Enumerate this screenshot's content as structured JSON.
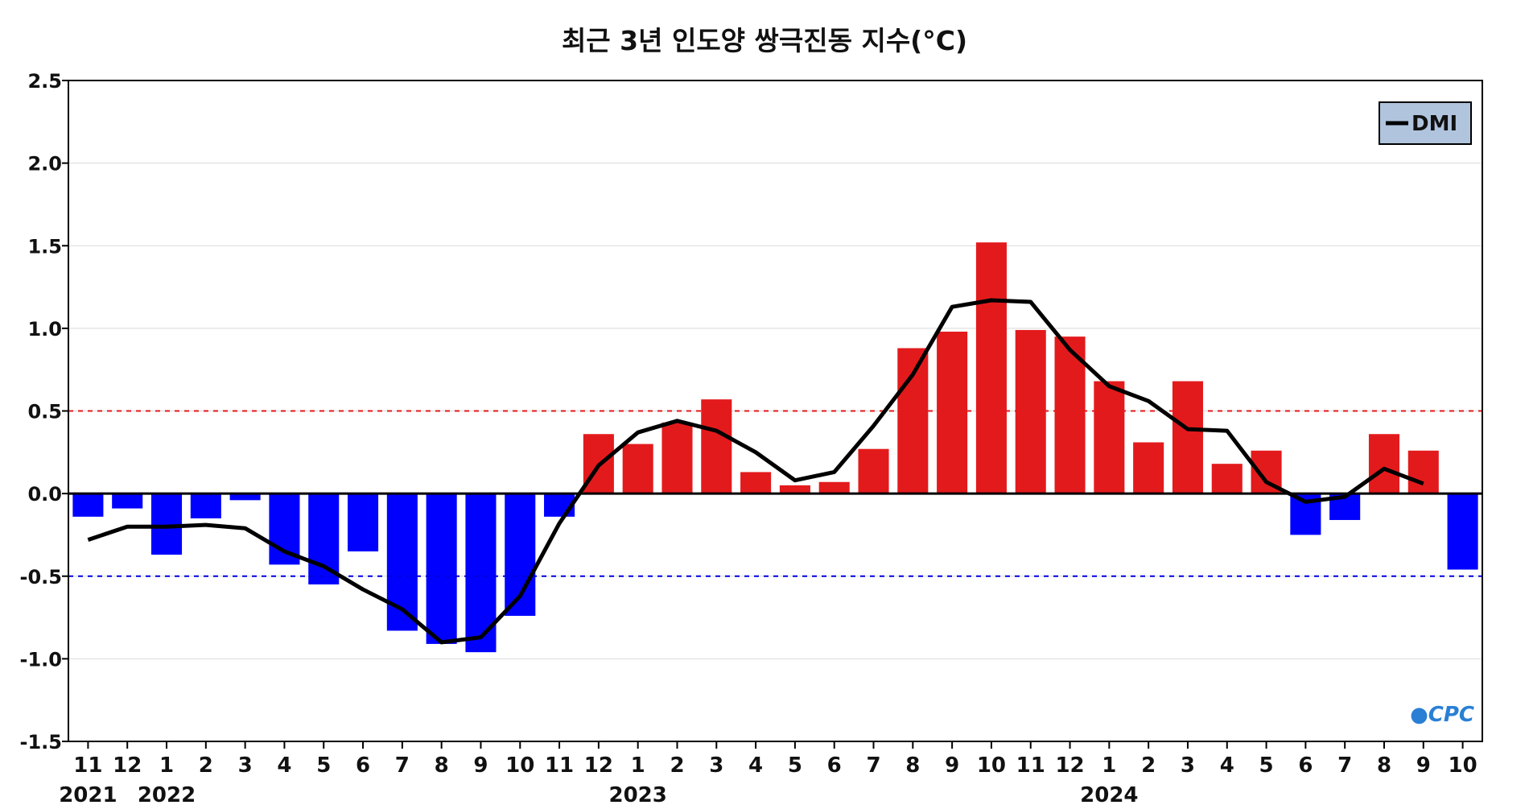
{
  "chart_data": {
    "type": "bar",
    "title": "최근 3년 인도양 쌍극진동 지수(°C)",
    "ylim": [
      -1.5,
      2.5
    ],
    "yticks": [
      "2.5",
      "2.0",
      "1.5",
      "1.0",
      "0.5",
      "0.0",
      "-0.5",
      "-1.0",
      "-1.5"
    ],
    "ytick_values": [
      2.5,
      2.0,
      1.5,
      1.0,
      0.5,
      0.0,
      -0.5,
      -1.0,
      -1.5
    ],
    "categories": [
      "11",
      "12",
      "1",
      "2",
      "3",
      "4",
      "5",
      "6",
      "7",
      "8",
      "9",
      "10",
      "11",
      "12",
      "1",
      "2",
      "3",
      "4",
      "5",
      "6",
      "7",
      "8",
      "9",
      "10",
      "11",
      "12",
      "1",
      "2",
      "3",
      "4",
      "5",
      "6",
      "7",
      "8",
      "9",
      "10"
    ],
    "year_labels": [
      {
        "index": 0,
        "text": "2021"
      },
      {
        "index": 2,
        "text": "2022"
      },
      {
        "index": 14,
        "text": "2023"
      },
      {
        "index": 26,
        "text": "2024"
      }
    ],
    "bar_values": [
      -0.14,
      -0.09,
      -0.37,
      -0.15,
      -0.04,
      -0.43,
      -0.55,
      -0.35,
      -0.83,
      -0.91,
      -0.96,
      -0.74,
      -0.14,
      0.36,
      0.3,
      0.43,
      0.57,
      0.13,
      0.05,
      0.07,
      0.27,
      0.88,
      0.98,
      1.52,
      0.99,
      0.95,
      0.68,
      0.31,
      0.68,
      0.18,
      0.26,
      -0.25,
      -0.16,
      0.36,
      0.26,
      -0.46
    ],
    "series": [
      {
        "name": "DMI",
        "type": "line",
        "values": [
          -0.28,
          -0.2,
          -0.2,
          -0.19,
          -0.21,
          -0.35,
          -0.44,
          -0.58,
          -0.7,
          -0.9,
          -0.87,
          -0.62,
          -0.18,
          0.17,
          0.37,
          0.44,
          0.38,
          0.25,
          0.08,
          0.13,
          0.41,
          0.72,
          1.13,
          1.17,
          1.16,
          0.87,
          0.65,
          0.56,
          0.39,
          0.38,
          0.07,
          -0.05,
          -0.02,
          0.15,
          0.06,
          null
        ]
      }
    ],
    "reference_lines": [
      0.5,
      -0.5,
      0.0
    ],
    "grid": true,
    "legend_placement": "top-right",
    "colors": {
      "positive_bar": "#e31a1c",
      "negative_bar": "#0000ff",
      "dmi_line": "#000000",
      "legend_bg": "#b0c4de",
      "pos_threshold": "#e31a1c",
      "neg_threshold": "#0000dd",
      "grid": "#d9d9d9"
    },
    "watermark": "CPC"
  }
}
